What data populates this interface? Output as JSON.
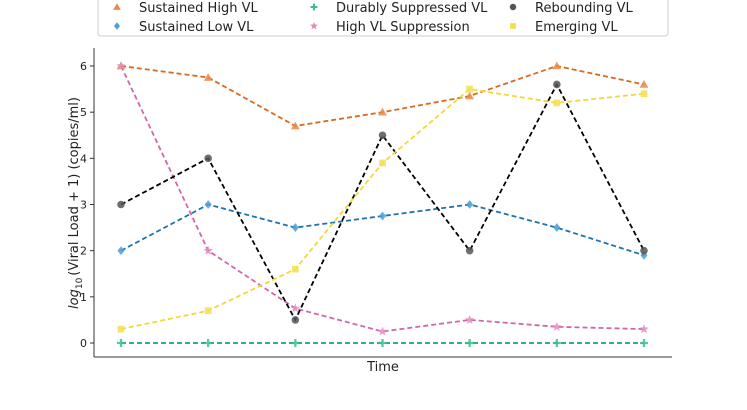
{
  "chart_data": {
    "type": "line",
    "title": "",
    "xlabel": "Time",
    "ylabel_prefix": "log",
    "ylabel_subscript": "10",
    "ylabel_suffix": "(Viral Load + 1) (copies/ml)",
    "ylim": [
      -0.3,
      6.35
    ],
    "yticks": [
      0,
      1,
      2,
      3,
      4,
      5,
      6
    ],
    "x": [
      1,
      2,
      3,
      4,
      5,
      6,
      7
    ],
    "legend_location": "top, above plot",
    "series": [
      {
        "name": "Sustained High VL",
        "color": "#e8884a",
        "line_color": "#d9691e",
        "marker": "triangle",
        "values": [
          6.0,
          5.75,
          4.7,
          5.0,
          5.35,
          6.0,
          5.6
        ]
      },
      {
        "name": "Sustained Low VL",
        "color": "#4c9fd6",
        "line_color": "#1f72b0",
        "marker": "diamond",
        "values": [
          2.0,
          3.0,
          2.5,
          2.75,
          3.0,
          2.5,
          1.9
        ]
      },
      {
        "name": "Durably Suppressed VL",
        "color": "#3bbf8a",
        "line_color": "#1d9e6b",
        "marker": "plus",
        "values": [
          0,
          0,
          0,
          0,
          0,
          0,
          0
        ]
      },
      {
        "name": "High VL Suppression",
        "color": "#e38cc0",
        "line_color": "#d068a8",
        "marker": "star",
        "values": [
          6.0,
          2.0,
          0.75,
          0.25,
          0.5,
          0.35,
          0.3
        ]
      },
      {
        "name": "Rebounding VL",
        "color": "#555555",
        "line_color": "#000000",
        "marker": "circle",
        "values": [
          3.0,
          4.0,
          0.5,
          4.5,
          2.0,
          5.6,
          2.0
        ]
      },
      {
        "name": "Emerging VL",
        "color": "#f0e050",
        "line_color": "#f3d83a",
        "marker": "square",
        "values": [
          0.3,
          0.7,
          1.6,
          3.9,
          5.5,
          5.2,
          5.4
        ]
      }
    ]
  }
}
